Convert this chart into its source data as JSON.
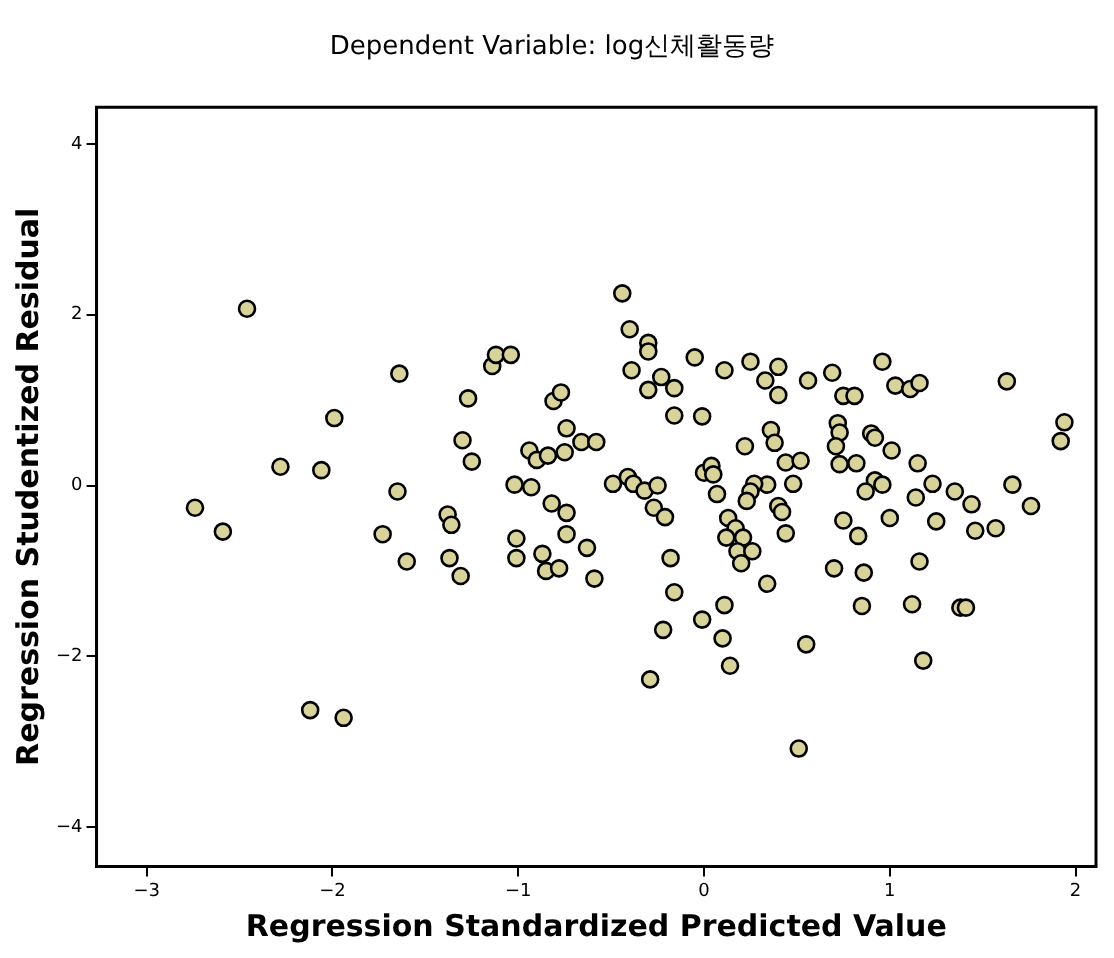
{
  "chart_data": {
    "type": "scatter",
    "title": "Dependent Variable: log신체활동량",
    "xlabel": "Regression Standardized Predicted Value",
    "ylabel": "Regression Studentized Residual",
    "color": "#d8d39a",
    "marker": "circle",
    "grid": false,
    "legend": false,
    "xlim": [
      -3.27,
      2.11
    ],
    "ylim": [
      -4.46,
      4.43
    ],
    "xticks": [
      -3,
      -2,
      -1,
      0,
      1,
      2
    ],
    "yticks": [
      -4,
      -2,
      0,
      2,
      4
    ],
    "x": [
      -2.46,
      -2.74,
      -2.59,
      -2.28,
      -2.06,
      -1.99,
      -2.12,
      -1.94,
      -1.64,
      -1.65,
      -1.73,
      -1.6,
      -1.27,
      -1.3,
      -1.25,
      -1.38,
      -1.36,
      -1.37,
      -1.31,
      -1.14,
      -1.12,
      -1.04,
      -1.02,
      -0.93,
      -1.01,
      -1.01,
      -0.87,
      -0.85,
      -0.78,
      -0.81,
      -0.77,
      -0.74,
      -0.94,
      -0.9,
      -0.84,
      -0.75,
      -0.66,
      -0.58,
      -0.82,
      -0.74,
      -0.74,
      -0.63,
      -0.59,
      -0.44,
      -0.4,
      -0.3,
      -0.3,
      -0.39,
      -0.3,
      -0.23,
      -0.16,
      -0.05,
      0.11,
      0.25,
      0.4,
      0.33,
      0.4,
      0.56,
      0.69,
      0.75,
      0.81,
      0.96,
      1.03,
      1.11,
      1.16,
      1.63,
      1.94,
      1.92,
      -0.16,
      -0.01,
      -0.49,
      -0.41,
      -0.38,
      -0.32,
      -0.25,
      -0.27,
      -0.21,
      -0.18,
      -0.16,
      -0.22,
      -0.29,
      -0.01,
      0.11,
      0.1,
      0.14,
      0.34,
      0.55,
      0.0,
      0.04,
      0.05,
      0.07,
      0.22,
      0.36,
      0.38,
      0.44,
      0.52,
      0.48,
      0.34,
      0.27,
      0.25,
      0.23,
      0.4,
      0.42,
      0.13,
      0.17,
      0.12,
      0.21,
      0.18,
      0.26,
      0.2,
      0.44,
      0.72,
      0.73,
      0.71,
      0.73,
      0.82,
      0.9,
      0.92,
      1.01,
      0.92,
      0.96,
      0.87,
      1.15,
      1.23,
      1.14,
      1.35,
      1.44,
      1.25,
      1.46,
      1.57,
      1.66,
      1.76,
      1.0,
      0.75,
      0.83,
      0.7,
      0.86,
      1.16,
      0.85,
      1.12,
      1.38,
      1.41,
      1.18,
      0.51
    ],
    "values": [
      2.07,
      -0.26,
      -0.54,
      0.22,
      0.18,
      0.79,
      -2.63,
      -2.72,
      1.31,
      -0.07,
      -0.57,
      -0.89,
      1.02,
      0.53,
      0.28,
      -0.34,
      -0.46,
      -0.85,
      -1.06,
      1.4,
      1.53,
      1.53,
      0.01,
      -0.02,
      -0.62,
      -0.85,
      -0.8,
      -1.0,
      -0.97,
      0.99,
      1.09,
      0.67,
      0.41,
      0.3,
      0.35,
      0.39,
      0.51,
      0.51,
      -0.21,
      -0.32,
      -0.57,
      -0.73,
      -1.09,
      2.25,
      1.83,
      1.67,
      1.57,
      1.35,
      1.12,
      1.27,
      1.14,
      1.5,
      1.35,
      1.45,
      1.39,
      1.23,
      1.06,
      1.23,
      1.32,
      1.05,
      1.05,
      1.45,
      1.17,
      1.13,
      1.2,
      1.22,
      0.74,
      0.52,
      0.82,
      0.81,
      0.02,
      0.1,
      0.02,
      -0.06,
      0.0,
      -0.26,
      -0.37,
      -0.85,
      -1.25,
      -1.69,
      -2.27,
      -1.57,
      -1.4,
      -1.79,
      -2.11,
      -1.15,
      -1.86,
      0.15,
      0.23,
      0.13,
      -0.1,
      0.46,
      0.65,
      0.5,
      0.27,
      0.29,
      0.02,
      0.01,
      0.02,
      -0.07,
      -0.18,
      -0.24,
      -0.31,
      -0.38,
      -0.5,
      -0.61,
      -0.61,
      -0.77,
      -0.77,
      -0.91,
      -0.56,
      0.73,
      0.62,
      0.46,
      0.25,
      0.26,
      0.61,
      0.56,
      0.41,
      0.06,
      0.01,
      -0.07,
      0.26,
      0.02,
      -0.14,
      -0.07,
      -0.22,
      -0.42,
      -0.53,
      -0.5,
      0.01,
      -0.24,
      -0.38,
      -0.41,
      -0.59,
      -0.97,
      -1.02,
      -0.89,
      -1.41,
      -1.39,
      -1.43,
      -1.43,
      -2.05,
      -3.08
    ]
  }
}
